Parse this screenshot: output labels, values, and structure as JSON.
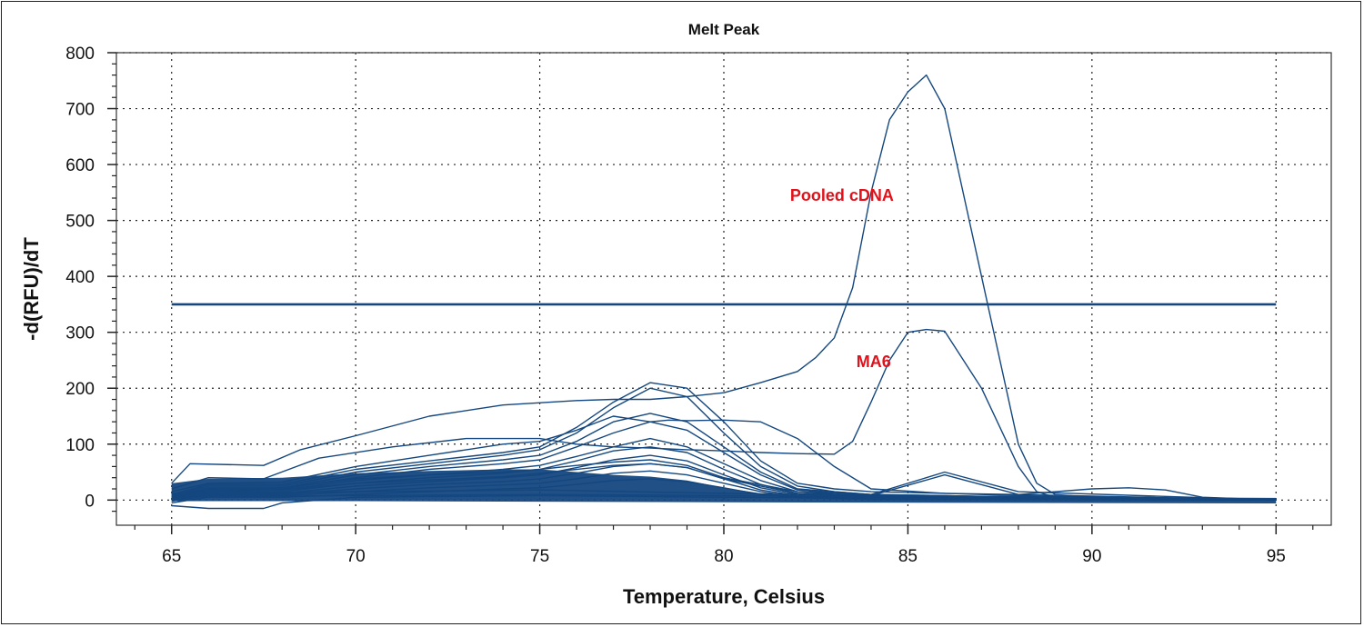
{
  "chart_data": {
    "type": "line",
    "title": "Melt Peak",
    "xlabel": "Temperature, Celsius",
    "ylabel": "-d(RFU)/dT",
    "xlim": [
      63.5,
      96.5
    ],
    "ylim": [
      -45,
      800
    ],
    "xticks": [
      65,
      70,
      75,
      80,
      85,
      90,
      95
    ],
    "yticks": [
      0,
      100,
      200,
      300,
      400,
      500,
      600,
      700,
      800
    ],
    "grid": true,
    "line_color": "#14477f",
    "threshold": {
      "y": 350,
      "x": [
        65,
        95
      ]
    },
    "annotations": [
      {
        "text": "Pooled cDNA",
        "x": 81.8,
        "y": 535
      },
      {
        "text": "MA6",
        "x": 83.6,
        "y": 238
      }
    ],
    "series": [
      {
        "x": [
          65,
          65.5,
          67.5,
          68.5,
          70,
          72,
          74,
          76,
          77,
          78,
          79,
          80,
          81,
          82,
          82.5,
          83,
          83.5,
          84,
          84.5,
          85,
          85.5,
          86,
          87,
          88,
          88.5,
          89,
          90,
          91,
          92,
          93,
          94,
          95
        ],
        "y": [
          30,
          65,
          62,
          90,
          115,
          150,
          170,
          178,
          180,
          180,
          185,
          192,
          210,
          230,
          255,
          290,
          380,
          550,
          680,
          730,
          760,
          700,
          400,
          100,
          30,
          10,
          5,
          3,
          2,
          1,
          0,
          0
        ]
      },
      {
        "x": [
          65,
          66,
          67.5,
          69,
          71,
          73,
          75,
          76,
          77,
          78,
          79,
          80,
          81,
          82,
          83,
          83.5,
          84,
          84.5,
          85,
          85.5,
          86,
          87,
          88,
          88.5,
          89,
          90,
          91,
          92,
          93,
          94,
          95
        ],
        "y": [
          20,
          40,
          38,
          75,
          95,
          110,
          110,
          100,
          95,
          93,
          90,
          88,
          85,
          83,
          82,
          105,
          175,
          250,
          300,
          305,
          302,
          200,
          60,
          15,
          5,
          3,
          2,
          1,
          0,
          0,
          0
        ]
      },
      {
        "x": [
          65,
          66,
          68,
          70,
          72,
          74,
          75,
          76,
          77,
          78,
          78.5,
          79,
          80,
          81,
          82,
          83,
          84,
          86,
          88,
          90,
          91,
          92,
          93,
          95
        ],
        "y": [
          15,
          30,
          32,
          60,
          80,
          100,
          105,
          125,
          150,
          140,
          143,
          142,
          143,
          140,
          110,
          60,
          20,
          12,
          10,
          20,
          22,
          18,
          5,
          0
        ]
      },
      {
        "x": [
          65,
          66,
          68,
          70,
          72,
          74,
          75,
          76,
          77,
          78,
          79,
          80,
          81,
          82,
          83,
          84,
          86,
          88,
          90,
          92,
          95
        ],
        "y": [
          10,
          28,
          28,
          55,
          70,
          85,
          95,
          130,
          175,
          210,
          200,
          140,
          70,
          30,
          20,
          15,
          12,
          8,
          5,
          2,
          0
        ]
      },
      {
        "x": [
          65,
          66,
          68,
          70,
          72,
          74,
          75,
          76,
          77,
          78,
          79,
          80,
          81,
          82,
          83,
          84,
          86,
          88,
          90,
          95
        ],
        "y": [
          8,
          25,
          25,
          50,
          65,
          80,
          90,
          120,
          165,
          200,
          185,
          120,
          60,
          25,
          15,
          10,
          8,
          5,
          3,
          0
        ]
      },
      {
        "x": [
          65,
          66,
          68,
          70,
          72,
          74,
          75,
          76,
          77,
          78,
          79,
          80,
          81,
          82,
          84,
          86,
          88,
          95
        ],
        "y": [
          6,
          22,
          22,
          45,
          60,
          72,
          80,
          105,
          140,
          155,
          140,
          95,
          50,
          20,
          10,
          8,
          5,
          0
        ]
      },
      {
        "x": [
          65,
          66,
          68,
          70,
          72,
          74,
          75,
          76,
          77,
          78,
          79,
          80,
          81,
          82,
          84,
          86,
          88,
          95
        ],
        "y": [
          5,
          20,
          20,
          40,
          55,
          65,
          72,
          95,
          120,
          140,
          125,
          85,
          45,
          18,
          8,
          6,
          4,
          0
        ]
      },
      {
        "x": [
          65,
          66,
          68,
          70,
          72,
          74,
          75,
          76,
          77,
          78,
          79,
          80,
          81,
          82,
          84,
          95
        ],
        "y": [
          4,
          18,
          18,
          35,
          45,
          55,
          62,
          78,
          95,
          110,
          95,
          65,
          35,
          15,
          6,
          0
        ]
      },
      {
        "x": [
          65,
          66,
          68,
          70,
          72,
          74,
          75,
          76,
          77,
          78,
          79,
          80,
          81,
          82,
          84,
          95
        ],
        "y": [
          3,
          15,
          15,
          30,
          40,
          48,
          55,
          70,
          88,
          95,
          85,
          55,
          28,
          12,
          5,
          0
        ]
      },
      {
        "x": [
          65,
          66,
          68,
          70,
          72,
          74,
          75,
          76,
          77,
          78,
          79,
          80,
          81,
          82,
          84,
          95
        ],
        "y": [
          2,
          12,
          12,
          25,
          33,
          40,
          45,
          58,
          72,
          80,
          70,
          45,
          22,
          10,
          4,
          0
        ]
      },
      {
        "x": [
          65,
          66,
          68,
          70,
          72,
          74,
          75,
          76,
          77,
          78,
          79,
          80,
          81,
          82,
          84,
          95
        ],
        "y": [
          0,
          10,
          10,
          20,
          28,
          33,
          38,
          48,
          60,
          65,
          58,
          38,
          18,
          8,
          3,
          0
        ]
      },
      {
        "x": [
          65,
          66,
          68,
          70,
          72,
          74,
          75,
          76,
          77,
          78,
          79,
          80,
          81,
          82,
          84,
          95
        ],
        "y": [
          -2,
          8,
          8,
          15,
          22,
          27,
          30,
          38,
          48,
          52,
          45,
          30,
          15,
          6,
          2,
          0
        ]
      },
      {
        "x": [
          65,
          66,
          68,
          70,
          72,
          74,
          75,
          76,
          77,
          78,
          79,
          80,
          81,
          82,
          84,
          95
        ],
        "y": [
          -5,
          5,
          5,
          10,
          15,
          20,
          22,
          28,
          35,
          38,
          33,
          22,
          10,
          4,
          1,
          0
        ]
      },
      {
        "x": [
          65,
          66,
          68,
          70,
          72,
          74,
          75,
          76,
          77,
          78,
          79,
          80,
          82,
          84,
          86,
          88,
          95
        ],
        "y": [
          10,
          20,
          22,
          38,
          45,
          50,
          55,
          62,
          68,
          72,
          62,
          40,
          15,
          10,
          50,
          15,
          0
        ]
      },
      {
        "x": [
          65,
          66,
          68,
          70,
          72,
          74,
          75,
          76,
          77,
          78,
          79,
          80,
          82,
          84,
          86,
          88,
          95
        ],
        "y": [
          8,
          16,
          18,
          30,
          36,
          42,
          48,
          55,
          62,
          65,
          58,
          38,
          12,
          8,
          45,
          10,
          0
        ]
      },
      {
        "x": [
          65,
          66,
          67.5,
          68,
          70,
          75,
          80,
          85,
          90,
          95
        ],
        "y": [
          -10,
          -15,
          -15,
          -5,
          5,
          8,
          5,
          3,
          2,
          0
        ]
      },
      {
        "x": [
          65,
          70,
          75,
          80,
          85,
          90,
          95
        ],
        "y": [
          5,
          8,
          10,
          8,
          6,
          4,
          0
        ]
      },
      {
        "x": [
          65,
          70,
          75,
          80,
          85,
          90,
          95
        ],
        "y": [
          12,
          15,
          18,
          12,
          8,
          5,
          2
        ]
      }
    ]
  }
}
